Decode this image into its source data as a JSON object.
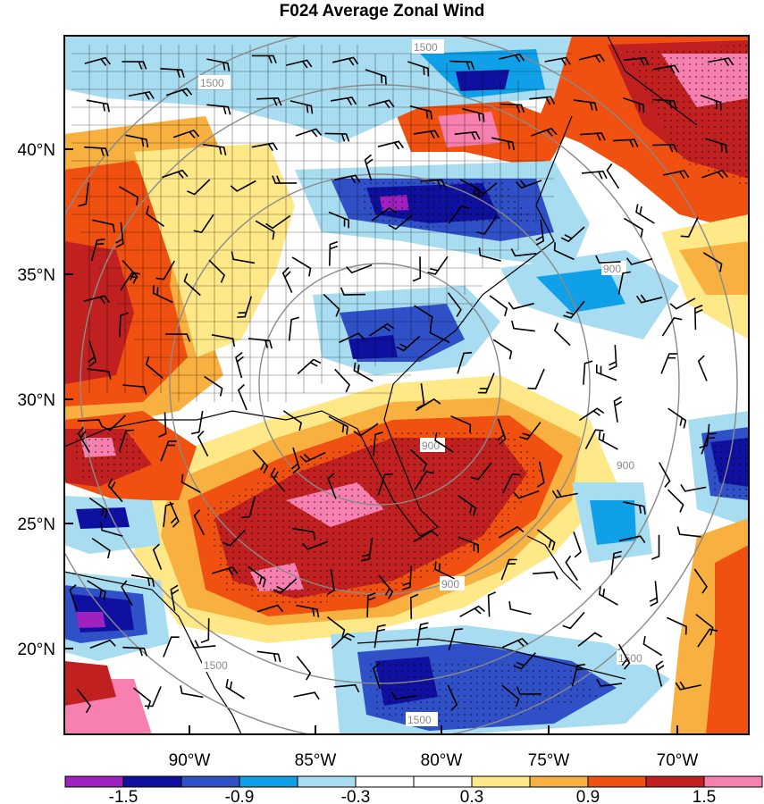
{
  "title": "F024 Average Zonal Wind",
  "lat_ticks": [
    "40°N",
    "35°N",
    "30°N",
    "25°N",
    "20°N"
  ],
  "lon_ticks": [
    "90°W",
    "85°W",
    "80°W",
    "75°W",
    "70°W"
  ],
  "colorbar": {
    "colors": [
      "#a020c0",
      "#1010a0",
      "#3050c8",
      "#10a0e8",
      "#a8dcf0",
      "#ffffff",
      "#ffffff",
      "#ffe888",
      "#f8b040",
      "#f05010",
      "#c02020",
      "#f880b0"
    ],
    "labels": [
      "-1.5",
      "-0.9",
      "-0.3",
      "0.3",
      "0.9",
      "1.5"
    ]
  },
  "contour_labels": [
    "1500",
    "1500",
    "900",
    "900",
    "900",
    "1500",
    "1500",
    "1500",
    "900"
  ]
}
